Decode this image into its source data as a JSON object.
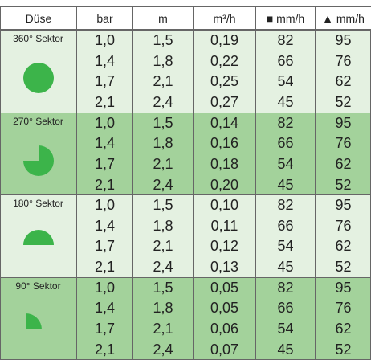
{
  "table": {
    "headers": [
      "Düse",
      "bar",
      "m",
      "m³/h",
      "■ mm/h",
      "▲ mm/h"
    ],
    "groups": [
      {
        "label": "360° Sektor",
        "rows": [
          [
            "1,0",
            "1,5",
            "0,19",
            "82",
            "95"
          ],
          [
            "1,4",
            "1,8",
            "0,22",
            "66",
            "76"
          ],
          [
            "1,7",
            "2,1",
            "0,25",
            "54",
            "62"
          ],
          [
            "2,1",
            "2,4",
            "0,27",
            "45",
            "52"
          ]
        ]
      },
      {
        "label": "270° Sektor",
        "rows": [
          [
            "1,0",
            "1,5",
            "0,14",
            "82",
            "95"
          ],
          [
            "1,4",
            "1,8",
            "0,16",
            "66",
            "76"
          ],
          [
            "1,7",
            "2,1",
            "0,18",
            "54",
            "62"
          ],
          [
            "2,1",
            "2,4",
            "0,20",
            "45",
            "52"
          ]
        ]
      },
      {
        "label": "180° Sektor",
        "rows": [
          [
            "1,0",
            "1,5",
            "0,10",
            "82",
            "95"
          ],
          [
            "1,4",
            "1,8",
            "0,11",
            "66",
            "76"
          ],
          [
            "1,7",
            "2,1",
            "0,12",
            "54",
            "62"
          ],
          [
            "2,1",
            "2,4",
            "0,13",
            "45",
            "52"
          ]
        ]
      },
      {
        "label": "90° Sektor",
        "rows": [
          [
            "1,0",
            "1,5",
            "0,05",
            "82",
            "95"
          ],
          [
            "1,4",
            "1,8",
            "0,05",
            "66",
            "76"
          ],
          [
            "1,7",
            "2,1",
            "0,06",
            "54",
            "62"
          ],
          [
            "2,1",
            "2,4",
            "0,07",
            "45",
            "52"
          ]
        ]
      }
    ]
  }
}
